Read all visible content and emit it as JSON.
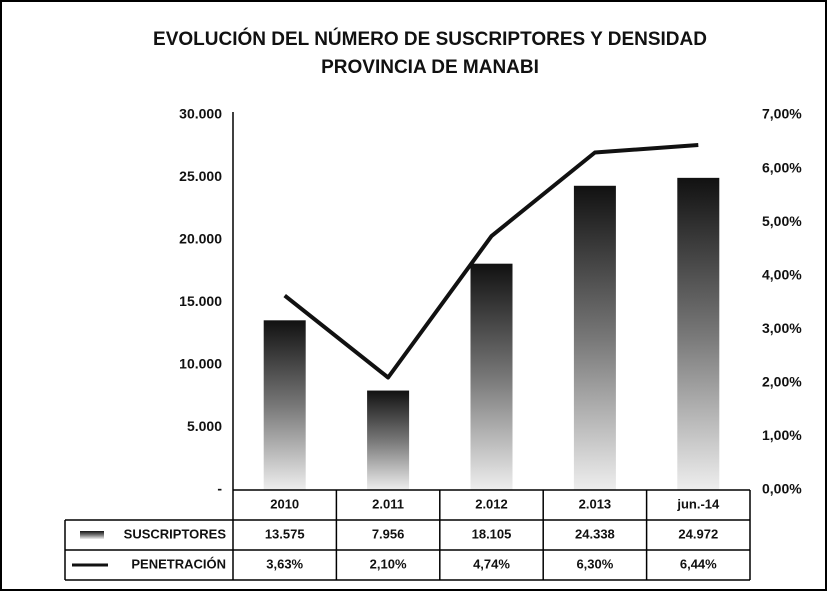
{
  "chart_data": {
    "type": "bar_line_table",
    "title": "EVOLUCIÓN DEL NÚMERO DE SUSCRIPTORES Y DENSIDAD",
    "subtitle": "PROVINCIA DE MANABI",
    "categories": [
      "2010",
      "2.011",
      "2.012",
      "2.013",
      "jun.-14"
    ],
    "series": [
      {
        "name": "SUSCRIPTORES",
        "type": "bar",
        "color": "#222222",
        "values": [
          13575,
          7956,
          18105,
          24338,
          24972
        ],
        "value_labels": [
          "13.575",
          "7.956",
          "18.105",
          "24.338",
          "24.972"
        ]
      },
      {
        "name": "PENETRACIÓN",
        "type": "line",
        "axis": "y2",
        "color": "#111111",
        "values": [
          3.63,
          2.1,
          4.74,
          6.3,
          6.44
        ],
        "value_labels": [
          "3,63%",
          "2,10%",
          "4,74%",
          "6,30%",
          "6,44%"
        ]
      }
    ],
    "ylim": [
      0,
      30000
    ],
    "yticks": [
      {
        "value": 0,
        "label": "-"
      },
      {
        "value": 5000,
        "label": "5.000"
      },
      {
        "value": 10000,
        "label": "10.000"
      },
      {
        "value": 15000,
        "label": "15.000"
      },
      {
        "value": 20000,
        "label": "20.000"
      },
      {
        "value": 25000,
        "label": "25.000"
      },
      {
        "value": 30000,
        "label": "30.000"
      }
    ],
    "y2lim": [
      0,
      7
    ],
    "y2ticks": [
      {
        "value": 0,
        "label": "0,00%"
      },
      {
        "value": 1,
        "label": "1,00%"
      },
      {
        "value": 2,
        "label": "2,00%"
      },
      {
        "value": 3,
        "label": "3,00%"
      },
      {
        "value": 4,
        "label": "4,00%"
      },
      {
        "value": 5,
        "label": "5,00%"
      },
      {
        "value": 6,
        "label": "6,00%"
      },
      {
        "value": 7,
        "label": "7,00%"
      }
    ]
  }
}
